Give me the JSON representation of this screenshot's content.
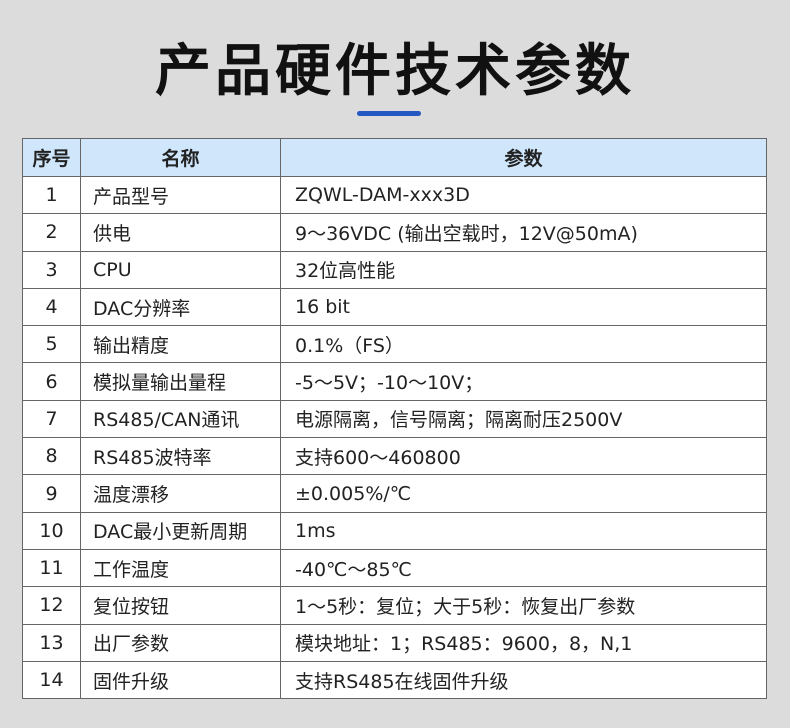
{
  "title": "产品硬件技术参数",
  "accent": "#2459c2",
  "table": {
    "headers": [
      "序号",
      "名称",
      "参数"
    ],
    "rows": [
      [
        "1",
        "产品型号",
        "ZQWL-DAM-xxx3D"
      ],
      [
        "2",
        "供电",
        "9～36VDC (输出空载时，12V@50mA)"
      ],
      [
        "3",
        "CPU",
        "32位高性能"
      ],
      [
        "4",
        "DAC分辨率",
        "16 bit"
      ],
      [
        "5",
        "输出精度",
        "0.1%（FS）"
      ],
      [
        "6",
        "模拟量输出量程",
        "-5～5V；-10～10V；"
      ],
      [
        "7",
        "RS485/CAN通讯",
        "电源隔离，信号隔离；隔离耐压2500V"
      ],
      [
        "8",
        "RS485波特率",
        "支持600～460800"
      ],
      [
        "9",
        "温度漂移",
        "±0.005%/℃"
      ],
      [
        "10",
        "DAC最小更新周期",
        "1ms"
      ],
      [
        "11",
        "工作温度",
        "-40℃～85℃"
      ],
      [
        "12",
        "复位按钮",
        "1～5秒：复位；大于5秒：恢复出厂参数"
      ],
      [
        "13",
        "出厂参数",
        "模块地址：1；RS485：9600，8，N,1"
      ],
      [
        "14",
        "固件升级",
        "支持RS485在线固件升级"
      ]
    ]
  }
}
